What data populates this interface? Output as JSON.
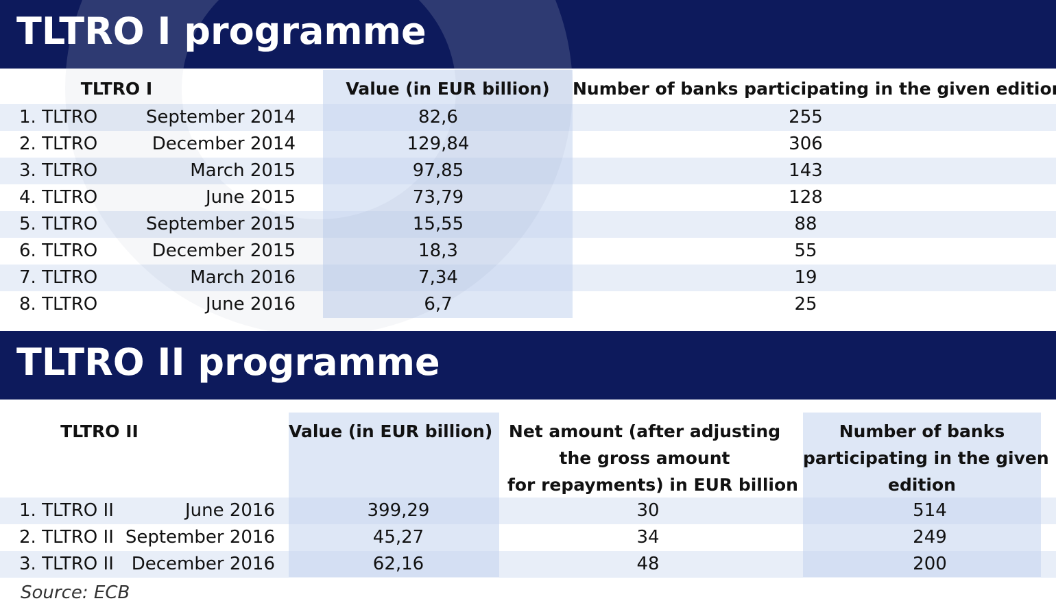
{
  "section1": {
    "title": "TLTRO I programme",
    "headers": [
      "TLTRO I",
      "Value (in EUR billion)",
      "Number of banks participating in the given edition"
    ],
    "rows": [
      {
        "name": "1. TLTRO",
        "date": "September 2014",
        "value": "82,6",
        "banks": "255"
      },
      {
        "name": "2. TLTRO",
        "date": "December 2014",
        "value": "129,84",
        "banks": "306"
      },
      {
        "name": "3. TLTRO",
        "date": "March 2015",
        "value": "97,85",
        "banks": "143"
      },
      {
        "name": "4. TLTRO",
        "date": "June 2015",
        "value": "73,79",
        "banks": "128"
      },
      {
        "name": "5. TLTRO",
        "date": "September 2015",
        "value": "15,55",
        "banks": "88"
      },
      {
        "name": "6. TLTRO",
        "date": "December 2015",
        "value": "18,3",
        "banks": "55"
      },
      {
        "name": "7. TLTRO",
        "date": "March 2016",
        "value": "7,34",
        "banks": "19"
      },
      {
        "name": "8. TLTRO",
        "date": "June 2016",
        "value": "6,7",
        "banks": "25"
      }
    ]
  },
  "section2": {
    "title": "TLTRO II programme",
    "headers": {
      "name": "TLTRO II",
      "value": "Value (in EUR billion)",
      "net": [
        "Net amount (after adjusting",
        "the gross amount",
        "for repayments) in EUR billion"
      ],
      "banks": [
        "Number of banks",
        "participating in the given",
        "edition"
      ]
    },
    "rows": [
      {
        "name": "1. TLTRO II",
        "date": "June 2016",
        "value": "399,29",
        "net": "30",
        "banks": "514"
      },
      {
        "name": "2. TLTRO II",
        "date": "September 2016",
        "value": "45,27",
        "net": "34",
        "banks": "249"
      },
      {
        "name": "3. TLTRO II",
        "date": "December 2016",
        "value": "62,16",
        "net": "48",
        "banks": "200"
      }
    ]
  },
  "source": "Source: ECB",
  "colors": {
    "banner": "#0d1a5c",
    "stripe": "#e8eef8",
    "highlight": "#c3d4ee"
  },
  "chart_data": [
    {
      "type": "table",
      "title": "TLTRO I programme",
      "columns": [
        "TLTRO I",
        "",
        "Value (in EUR billion)",
        "Number of banks participating in the given edition"
      ],
      "rows": [
        [
          "1. TLTRO",
          "September 2014",
          82.6,
          255
        ],
        [
          "2. TLTRO",
          "December 2014",
          129.84,
          306
        ],
        [
          "3. TLTRO",
          "March 2015",
          97.85,
          143
        ],
        [
          "4. TLTRO",
          "June 2015",
          73.79,
          128
        ],
        [
          "5. TLTRO",
          "September 2015",
          15.55,
          88
        ],
        [
          "6. TLTRO",
          "December 2015",
          18.3,
          55
        ],
        [
          "7. TLTRO",
          "March 2016",
          7.34,
          19
        ],
        [
          "8. TLTRO",
          "June 2016",
          6.7,
          25
        ]
      ]
    },
    {
      "type": "table",
      "title": "TLTRO II programme",
      "columns": [
        "TLTRO II",
        "",
        "Value (in EUR billion)",
        "Net amount (after adjusting the gross amount for repayments) in EUR billion",
        "Number of banks participating in the given edition"
      ],
      "rows": [
        [
          "1. TLTRO II",
          "June 2016",
          399.29,
          30,
          514
        ],
        [
          "2. TLTRO II",
          "September 2016",
          45.27,
          34,
          249
        ],
        [
          "3. TLTRO II",
          "December 2016",
          62.16,
          48,
          200
        ]
      ]
    }
  ]
}
